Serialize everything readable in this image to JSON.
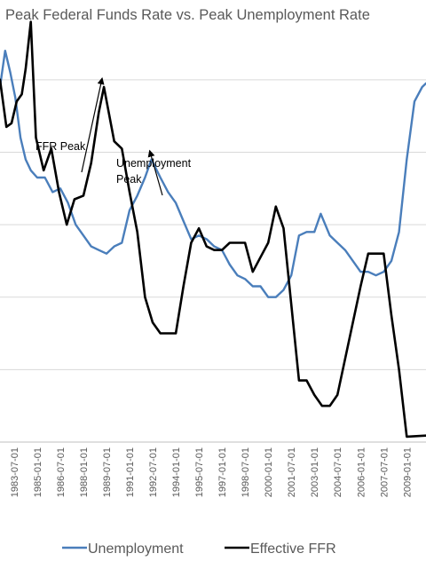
{
  "chart_data": {
    "type": "line",
    "title": "Peak Federal Funds Rate vs. Peak Unemployment Rate",
    "x_tick_labels": [
      "1983-07-01",
      "1985-01-01",
      "1986-07-01",
      "1988-01-01",
      "1989-07-01",
      "1991-01-01",
      "1992-07-01",
      "1994-01-01",
      "1995-07-01",
      "1997-01-01",
      "1998-07-01",
      "2000-01-01",
      "2001-07-01",
      "2003-01-01",
      "2004-07-01",
      "2006-01-01",
      "2007-07-01",
      "2009-01-01"
    ],
    "x_range": [
      "1982-08-01",
      "2010-04-01"
    ],
    "y_range": [
      0,
      11
    ],
    "y_gridlines": [
      0,
      2,
      4,
      6,
      8,
      10
    ],
    "grid": true,
    "legend_position": "bottom",
    "series": [
      {
        "name": "Unemployment",
        "color": "#4a7ebb",
        "points": [
          [
            "1982-08-01",
            9.8
          ],
          [
            "1982-12-01",
            10.8
          ],
          [
            "1983-04-01",
            10.2
          ],
          [
            "1983-08-01",
            9.5
          ],
          [
            "1983-12-01",
            8.4
          ],
          [
            "1984-04-01",
            7.8
          ],
          [
            "1984-08-01",
            7.5
          ],
          [
            "1985-01-01",
            7.3
          ],
          [
            "1985-07-01",
            7.3
          ],
          [
            "1986-01-01",
            6.9
          ],
          [
            "1986-07-01",
            7.0
          ],
          [
            "1987-01-01",
            6.6
          ],
          [
            "1987-07-01",
            6.0
          ],
          [
            "1988-01-01",
            5.7
          ],
          [
            "1988-07-01",
            5.4
          ],
          [
            "1989-01-01",
            5.3
          ],
          [
            "1989-07-01",
            5.2
          ],
          [
            "1990-01-01",
            5.4
          ],
          [
            "1990-07-01",
            5.5
          ],
          [
            "1991-01-01",
            6.4
          ],
          [
            "1991-07-01",
            6.8
          ],
          [
            "1992-01-01",
            7.3
          ],
          [
            "1992-06-01",
            7.8
          ],
          [
            "1993-01-01",
            7.3
          ],
          [
            "1993-07-01",
            6.9
          ],
          [
            "1994-01-01",
            6.6
          ],
          [
            "1994-07-01",
            6.1
          ],
          [
            "1995-01-01",
            5.6
          ],
          [
            "1995-07-01",
            5.7
          ],
          [
            "1996-01-01",
            5.6
          ],
          [
            "1996-07-01",
            5.4
          ],
          [
            "1997-01-01",
            5.3
          ],
          [
            "1997-07-01",
            4.9
          ],
          [
            "1998-01-01",
            4.6
          ],
          [
            "1998-07-01",
            4.5
          ],
          [
            "1999-01-01",
            4.3
          ],
          [
            "1999-07-01",
            4.3
          ],
          [
            "2000-01-01",
            4.0
          ],
          [
            "2000-07-01",
            4.0
          ],
          [
            "2001-01-01",
            4.2
          ],
          [
            "2001-07-01",
            4.6
          ],
          [
            "2002-01-01",
            5.7
          ],
          [
            "2002-07-01",
            5.8
          ],
          [
            "2003-01-01",
            5.8
          ],
          [
            "2003-06-01",
            6.3
          ],
          [
            "2004-01-01",
            5.7
          ],
          [
            "2004-07-01",
            5.5
          ],
          [
            "2005-01-01",
            5.3
          ],
          [
            "2005-07-01",
            5.0
          ],
          [
            "2006-01-01",
            4.7
          ],
          [
            "2006-07-01",
            4.7
          ],
          [
            "2007-01-01",
            4.6
          ],
          [
            "2007-07-01",
            4.7
          ],
          [
            "2008-01-01",
            5.0
          ],
          [
            "2008-07-01",
            5.8
          ],
          [
            "2009-01-01",
            7.8
          ],
          [
            "2009-07-01",
            9.4
          ],
          [
            "2010-01-01",
            9.8
          ],
          [
            "2010-04-01",
            9.9
          ]
        ]
      },
      {
        "name": "Effective FFR",
        "color": "#000000",
        "points": [
          [
            "1982-08-01",
            10.0
          ],
          [
            "1983-01-01",
            8.7
          ],
          [
            "1983-05-01",
            8.8
          ],
          [
            "1983-09-01",
            9.4
          ],
          [
            "1984-01-01",
            9.6
          ],
          [
            "1984-04-01",
            10.3
          ],
          [
            "1984-08-01",
            11.6
          ],
          [
            "1984-12-01",
            8.4
          ],
          [
            "1985-06-01",
            7.5
          ],
          [
            "1985-12-01",
            8.1
          ],
          [
            "1986-06-01",
            6.9
          ],
          [
            "1986-12-01",
            6.0
          ],
          [
            "1987-06-01",
            6.7
          ],
          [
            "1988-01-01",
            6.8
          ],
          [
            "1988-07-01",
            7.7
          ],
          [
            "1989-01-01",
            9.1
          ],
          [
            "1989-05-01",
            9.8
          ],
          [
            "1990-01-01",
            8.3
          ],
          [
            "1990-07-01",
            8.1
          ],
          [
            "1991-01-01",
            6.9
          ],
          [
            "1991-07-01",
            5.8
          ],
          [
            "1992-01-01",
            4.0
          ],
          [
            "1992-07-01",
            3.3
          ],
          [
            "1993-01-01",
            3.0
          ],
          [
            "1994-01-01",
            3.0
          ],
          [
            "1994-07-01",
            4.3
          ],
          [
            "1995-01-01",
            5.5
          ],
          [
            "1995-07-01",
            5.9
          ],
          [
            "1996-01-01",
            5.4
          ],
          [
            "1996-07-01",
            5.3
          ],
          [
            "1997-01-01",
            5.3
          ],
          [
            "1997-07-01",
            5.5
          ],
          [
            "1998-01-01",
            5.5
          ],
          [
            "1998-07-01",
            5.5
          ],
          [
            "1999-01-01",
            4.7
          ],
          [
            "1999-07-01",
            5.1
          ],
          [
            "2000-01-01",
            5.5
          ],
          [
            "2000-07-01",
            6.5
          ],
          [
            "2001-01-01",
            5.9
          ],
          [
            "2001-07-01",
            3.8
          ],
          [
            "2002-01-01",
            1.7
          ],
          [
            "2002-07-01",
            1.7
          ],
          [
            "2003-01-01",
            1.3
          ],
          [
            "2003-07-01",
            1.0
          ],
          [
            "2004-01-01",
            1.0
          ],
          [
            "2004-07-01",
            1.3
          ],
          [
            "2005-01-01",
            2.3
          ],
          [
            "2005-07-01",
            3.3
          ],
          [
            "2006-01-01",
            4.3
          ],
          [
            "2006-07-01",
            5.2
          ],
          [
            "2007-01-01",
            5.2
          ],
          [
            "2007-07-01",
            5.2
          ],
          [
            "2008-01-01",
            3.5
          ],
          [
            "2008-07-01",
            2.0
          ],
          [
            "2009-01-01",
            0.15
          ],
          [
            "2010-04-01",
            0.18
          ]
        ]
      }
    ],
    "annotations": [
      {
        "text": [
          "FFR Peak"
        ],
        "points_to": [
          "1989-05-01",
          9.8
        ]
      },
      {
        "text": [
          "Unemployment",
          "Peak"
        ],
        "points_to": [
          "1992-06-01",
          7.8
        ]
      }
    ]
  }
}
